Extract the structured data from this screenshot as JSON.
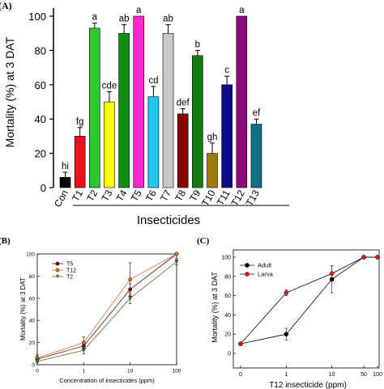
{
  "chart_data": [
    {
      "panel": "(A)",
      "type": "bar",
      "ylabel": "Mortality (%) at 3 DAT",
      "xlabel": "Insecticides",
      "ylim": [
        0,
        100
      ],
      "yticks": [
        0,
        20,
        40,
        60,
        80,
        100
      ],
      "grid": false,
      "categories": [
        "Con",
        "T1",
        "T2",
        "T3",
        "T4",
        "T5",
        "T6",
        "T7",
        "T8",
        "T9",
        "T10",
        "T11",
        "T12",
        "T13"
      ],
      "values": [
        6,
        30,
        93,
        50,
        90,
        100,
        53,
        90,
        43,
        77,
        20,
        60,
        100,
        37
      ],
      "errors": [
        3,
        5,
        3,
        6,
        5,
        0,
        6,
        5,
        3,
        3,
        6,
        5,
        0,
        3
      ],
      "letters": [
        "hi",
        "fg",
        "a",
        "cde",
        "ab",
        "a",
        "cd",
        "ab",
        "def",
        "b",
        "gh",
        "c",
        "a",
        "ef"
      ],
      "colors": [
        "#000000",
        "#e8131a",
        "#2fc62f",
        "#ffff00",
        "#0f8d10",
        "#ff26d4",
        "#1ec8f0",
        "#c8c8c8",
        "#8b0000",
        "#117a11",
        "#a0790d",
        "#0b0b8c",
        "#8a0a7a",
        "#0f7085"
      ]
    },
    {
      "panel": "(B)",
      "type": "line",
      "xlabel": "Concentration of insecticides (ppm)",
      "ylabel": "Mortality (%) at 3 DAT",
      "xscale": "log",
      "x": [
        0,
        1,
        10,
        100
      ],
      "xtick_labels": [
        "0",
        "1",
        "10",
        "100"
      ],
      "ylim": [
        0,
        100
      ],
      "yticks": [
        0,
        20,
        40,
        60,
        80,
        100
      ],
      "legend": "top-left",
      "series": [
        {
          "name": "T5",
          "values": [
            5,
            17,
            68,
            100
          ],
          "errors": [
            3,
            3,
            5,
            0
          ],
          "color": "#800000",
          "marker": "circle"
        },
        {
          "name": "T12",
          "values": [
            6,
            20,
            77,
            100
          ],
          "errors": [
            3,
            5,
            15,
            0
          ],
          "color": "#c0782a",
          "marker": "circle"
        },
        {
          "name": "T2",
          "values": [
            3,
            13,
            60,
            93
          ],
          "errors": [
            3,
            3,
            5,
            3
          ],
          "color": "#556b2f",
          "marker": "triangle-down"
        }
      ]
    },
    {
      "panel": "(C)",
      "type": "line",
      "xlabel": "T12 insecticide (ppm)",
      "ylabel": "Mortality (%) at 3 DAT",
      "xscale": "log",
      "x": [
        0,
        1,
        10,
        50,
        100
      ],
      "xtick_labels": [
        "0",
        "1",
        "10",
        "50",
        "100"
      ],
      "ylim": [
        0,
        100
      ],
      "yticks": [
        0,
        20,
        40,
        60,
        80,
        100
      ],
      "legend": "top-left",
      "series": [
        {
          "name": "Adult",
          "values": [
            10,
            20,
            77,
            100,
            100
          ],
          "errors": [
            0,
            6,
            14,
            0,
            0
          ],
          "color": "#000000"
        },
        {
          "name": "Larva",
          "values": [
            10,
            63,
            83,
            100,
            100
          ],
          "errors": [
            0,
            3,
            8,
            0,
            0
          ],
          "color": "#e8131a"
        }
      ]
    }
  ]
}
